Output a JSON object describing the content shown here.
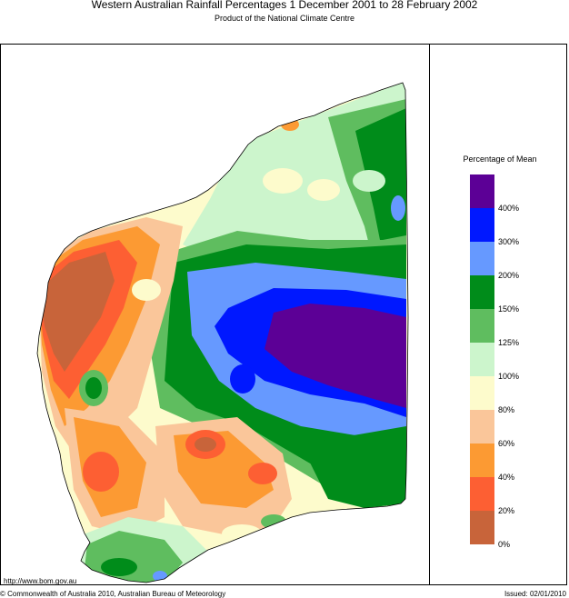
{
  "header": {
    "title": "Western Australian Rainfall Percentages 1 December 2001 to 28 February 2002",
    "subtitle": "Product of the National Climate Centre"
  },
  "legend": {
    "title": "Percentage of Mean",
    "bands": [
      {
        "label": "400%",
        "color": "#5c0096"
      },
      {
        "label": "300%",
        "color": "#0018ff"
      },
      {
        "label": "200%",
        "color": "#6699ff"
      },
      {
        "label": "150%",
        "color": "#008c1a"
      },
      {
        "label": "125%",
        "color": "#5fbd5f"
      },
      {
        "label": "100%",
        "color": "#ccf5cc"
      },
      {
        "label": "80%",
        "color": "#fdfbcc"
      },
      {
        "label": "60%",
        "color": "#fac69a"
      },
      {
        "label": "40%",
        "color": "#fc9a33"
      },
      {
        "label": "20%",
        "color": "#fd5f33"
      },
      {
        "label": "0%",
        "color": "#c8643a"
      }
    ]
  },
  "footer": {
    "url": "http://www.bom.gov.au",
    "copyright": "© Commonwealth of Australia 2010, Australian Bureau of Meteorology",
    "issued": "Issued: 02/01/2010"
  }
}
